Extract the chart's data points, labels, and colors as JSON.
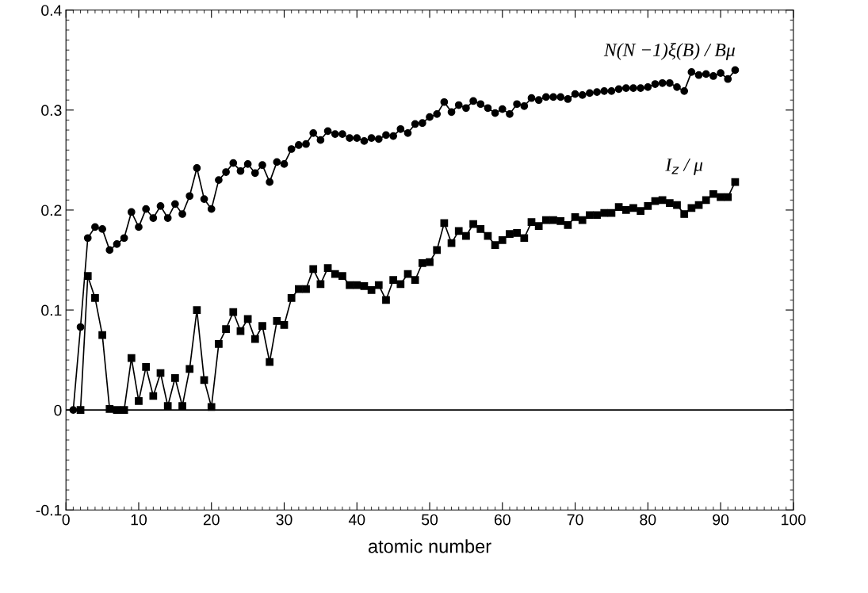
{
  "chart_data": {
    "type": "line",
    "xlabel": "atomic number",
    "x": [
      1,
      2,
      3,
      4,
      5,
      6,
      7,
      8,
      9,
      10,
      11,
      12,
      13,
      14,
      15,
      16,
      17,
      18,
      19,
      20,
      21,
      22,
      23,
      24,
      25,
      26,
      27,
      28,
      29,
      30,
      31,
      32,
      33,
      34,
      35,
      36,
      37,
      38,
      39,
      40,
      41,
      42,
      43,
      44,
      45,
      46,
      47,
      48,
      49,
      50,
      51,
      52,
      53,
      54,
      55,
      56,
      57,
      58,
      59,
      60,
      61,
      62,
      63,
      64,
      65,
      66,
      67,
      68,
      69,
      70,
      71,
      72,
      73,
      74,
      75,
      76,
      77,
      78,
      79,
      80,
      81,
      82,
      83,
      84,
      85,
      86,
      87,
      88,
      89,
      90,
      91,
      92
    ],
    "series": [
      {
        "color": "#000000",
        "marker": "circle",
        "values": [
          0,
          0.083,
          0.172,
          0.183,
          0.181,
          0.16,
          0.166,
          0.172,
          0.198,
          0.183,
          0.201,
          0.192,
          0.204,
          0.192,
          0.206,
          0.196,
          0.214,
          0.242,
          0.211,
          0.201,
          0.23,
          0.238,
          0.247,
          0.239,
          0.246,
          0.237,
          0.245,
          0.228,
          0.248,
          0.246,
          0.261,
          0.265,
          0.266,
          0.277,
          0.27,
          0.279,
          0.276,
          0.276,
          0.272,
          0.272,
          0.269,
          0.272,
          0.271,
          0.275,
          0.274,
          0.281,
          0.277,
          0.286,
          0.287,
          0.293,
          0.296,
          0.308,
          0.298,
          0.305,
          0.302,
          0.309,
          0.306,
          0.302,
          0.297,
          0.301,
          0.296,
          0.306,
          0.304,
          0.312,
          0.31,
          0.313,
          0.313,
          0.313,
          0.311,
          0.316,
          0.315,
          0.317,
          0.318,
          0.319,
          0.319,
          0.321,
          0.322,
          0.322,
          0.322,
          0.323,
          0.326,
          0.327,
          0.327,
          0.323,
          0.319,
          0.338,
          0.335,
          0.336,
          0.334,
          0.337,
          0.331,
          0.34
        ]
      },
      {
        "color": "#000000",
        "marker": "square",
        "values": [
          null,
          0,
          0.134,
          0.112,
          0.075,
          0.001,
          0,
          0,
          0.052,
          0.009,
          0.043,
          0.014,
          0.037,
          0.004,
          0.032,
          0.004,
          0.041,
          0.1,
          0.03,
          0.003,
          0.066,
          0.081,
          0.098,
          0.079,
          0.091,
          0.071,
          0.084,
          0.048,
          0.089,
          0.085,
          0.112,
          0.121,
          0.121,
          0.141,
          0.126,
          0.142,
          0.136,
          0.134,
          0.125,
          0.125,
          0.124,
          0.12,
          0.125,
          0.11,
          0.13,
          0.126,
          0.136,
          0.13,
          0.147,
          0.148,
          0.16,
          0.187,
          0.167,
          0.179,
          0.174,
          0.186,
          0.181,
          0.174,
          0.165,
          0.17,
          0.176,
          0.177,
          0.172,
          0.188,
          0.184,
          0.19,
          0.19,
          0.189,
          0.185,
          0.193,
          0.19,
          0.195,
          0.195,
          0.197,
          0.197,
          0.203,
          0.2,
          0.202,
          0.199,
          0.204,
          0.209,
          0.21,
          0.207,
          0.205,
          0.196,
          0.202,
          0.205,
          0.21,
          0.216,
          0.213,
          0.213,
          0.228
        ]
      }
    ],
    "annotations": [
      "N(N −1)ξ(B) / Bμ",
      "I$_{z}$ / μ"
    ],
    "xlim": [
      0,
      100
    ],
    "xticks": [
      0,
      10,
      20,
      30,
      40,
      50,
      60,
      70,
      80,
      90,
      100
    ],
    "ylim": [
      -0.1,
      0.4
    ],
    "yticks": [
      {
        "value": -0.1,
        "label": "-0.1"
      },
      0,
      0.1,
      0.2,
      0.3,
      0.4
    ],
    "ref_lines": [
      {
        "axis": "y",
        "value": 0,
        "color": "#000000"
      }
    ],
    "grid": false,
    "legend": false,
    "line_style": "solid"
  }
}
